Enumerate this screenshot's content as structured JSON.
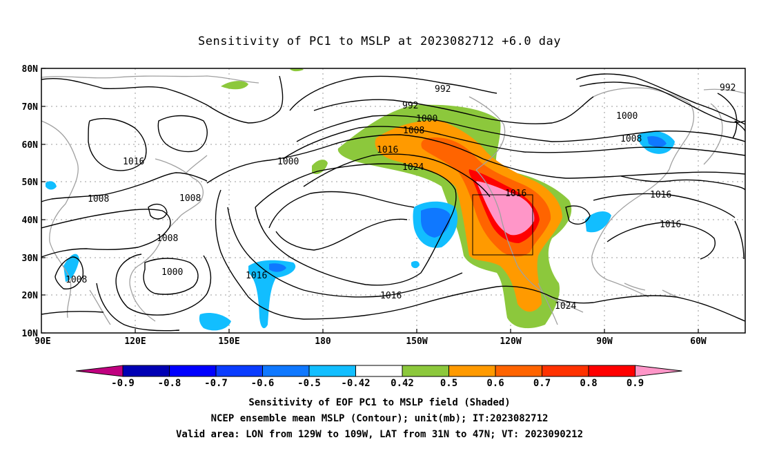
{
  "title": "Sensitivity of PC1 to MSLP at 2023082712 +6.0 day",
  "axes": {
    "lat_labels": [
      "80N",
      "70N",
      "60N",
      "50N",
      "40N",
      "30N",
      "20N",
      "10N"
    ],
    "lon_labels": [
      "90E",
      "120E",
      "150E",
      "180",
      "150W",
      "120W",
      "90W",
      "60W"
    ]
  },
  "contour_labels": [
    "992",
    "992",
    "992",
    "1000",
    "1000",
    "1000",
    "1000",
    "1008",
    "1008",
    "1008",
    "1008",
    "1008",
    "1008",
    "1016",
    "1016",
    "1016",
    "1016",
    "1016",
    "1016",
    "1016",
    "1024",
    "1024"
  ],
  "colorbar": {
    "labels": [
      "-0.9",
      "-0.8",
      "-0.7",
      "-0.6",
      "-0.5",
      "-0.42",
      "0.42",
      "0.5",
      "0.6",
      "0.7",
      "0.8",
      "0.9"
    ],
    "colors": [
      "#c0007f",
      "#0000b4",
      "#0000ff",
      "#0a3cff",
      "#0f78ff",
      "#12beff",
      "#ffffff",
      "#8cc83c",
      "#ff9a00",
      "#ff6400",
      "#ff3200",
      "#ff0000",
      "#ff96c8"
    ]
  },
  "footer": {
    "line1": "Sensitivity of EOF PC1 to MSLP field (Shaded)",
    "line2": "NCEP ensemble mean MSLP (Contour); unit(mb); IT:2023082712",
    "line3": "Valid area: LON from 129W to 109W, LAT from 31N to 47N; VT: 2023090212"
  }
}
